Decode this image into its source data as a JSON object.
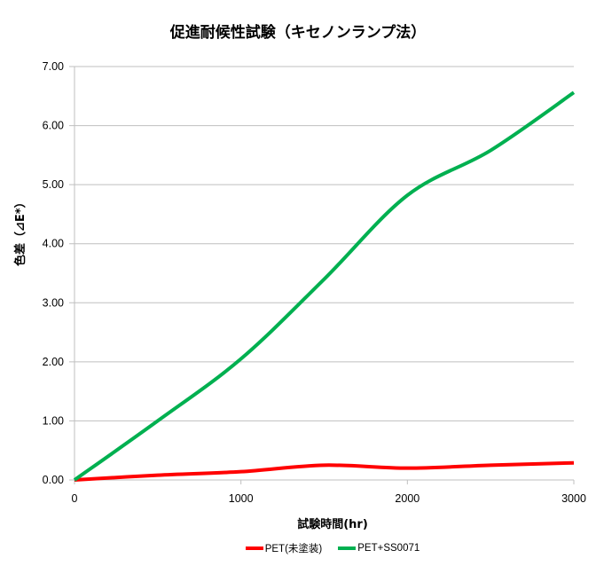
{
  "chart_data": {
    "type": "line",
    "title": "促進耐候性試験（キセノンランプ法）",
    "xlabel": "試験時間(hr)",
    "ylabel": "色差（⊿E*）",
    "x": [
      0,
      500,
      1000,
      1500,
      2000,
      2500,
      3000
    ],
    "xlim": [
      0,
      3000
    ],
    "ylim": [
      0,
      7
    ],
    "xticks": [
      "0",
      "1000",
      "2000",
      "3000"
    ],
    "yticks": [
      "0.00",
      "1.00",
      "2.00",
      "3.00",
      "4.00",
      "5.00",
      "6.00",
      "7.00"
    ],
    "grid": "horizontal",
    "legend_position": "bottom",
    "series": [
      {
        "name": "PET(未塗装)",
        "color": "#ff0000",
        "values": [
          0.0,
          0.08,
          0.14,
          0.25,
          0.2,
          0.25,
          0.29
        ]
      },
      {
        "name": "PET+SS0071",
        "color": "#00b050",
        "values": [
          0.0,
          1.0,
          2.05,
          3.4,
          4.82,
          5.58,
          6.56
        ]
      }
    ]
  },
  "legend": {
    "items": [
      {
        "label": "PET(未塗装)",
        "color": "#ff0000"
      },
      {
        "label": "PET+SS0071",
        "color": "#00b050"
      }
    ]
  }
}
